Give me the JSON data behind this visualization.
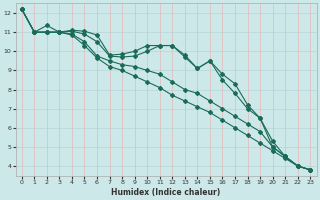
{
  "title": "",
  "xlabel": "Humidex (Indice chaleur)",
  "background_color": "#cce8e8",
  "grid_color_h": "#b8d4d4",
  "grid_color_v": "#e8b8b8",
  "line_color": "#1a6b5a",
  "xlim": [
    -0.5,
    23.5
  ],
  "ylim": [
    3.5,
    12.5
  ],
  "yticks": [
    4,
    5,
    6,
    7,
    8,
    9,
    10,
    11,
    12
  ],
  "xticks": [
    0,
    1,
    2,
    3,
    4,
    5,
    6,
    7,
    8,
    9,
    10,
    11,
    12,
    13,
    14,
    15,
    16,
    17,
    18,
    19,
    20,
    21,
    22,
    23
  ],
  "series": [
    {
      "x": [
        0,
        1,
        2,
        3,
        4,
        5,
        6,
        7,
        8,
        9,
        10,
        11,
        12,
        13,
        14,
        15,
        16,
        17,
        18,
        19,
        20,
        21,
        22,
        23
      ],
      "y": [
        12.2,
        11.0,
        11.35,
        11.0,
        11.1,
        11.05,
        10.85,
        9.8,
        9.85,
        10.0,
        10.3,
        10.3,
        10.3,
        9.7,
        9.1,
        9.5,
        8.8,
        8.3,
        7.2,
        6.5,
        5.3,
        4.5,
        4.0,
        3.8
      ]
    },
    {
      "x": [
        0,
        1,
        2,
        3,
        4,
        5,
        6,
        7,
        8,
        9,
        10,
        11,
        12,
        13,
        14,
        15,
        16,
        17,
        18,
        19,
        20,
        21,
        22,
        23
      ],
      "y": [
        12.2,
        11.0,
        11.0,
        11.0,
        11.05,
        10.9,
        10.5,
        9.75,
        9.7,
        9.75,
        10.0,
        10.3,
        10.3,
        9.8,
        9.1,
        9.5,
        8.5,
        7.8,
        7.0,
        6.5,
        5.0,
        4.5,
        4.0,
        3.8
      ]
    },
    {
      "x": [
        0,
        1,
        2,
        3,
        4,
        5,
        6,
        7,
        8,
        9,
        10,
        11,
        12,
        13,
        14,
        15,
        16,
        17,
        18,
        19,
        20,
        21,
        22,
        23
      ],
      "y": [
        12.2,
        11.0,
        11.0,
        11.0,
        10.9,
        10.5,
        9.75,
        9.5,
        9.3,
        9.2,
        9.0,
        8.8,
        8.4,
        8.0,
        7.8,
        7.4,
        7.0,
        6.6,
        6.2,
        5.8,
        5.0,
        4.5,
        4.0,
        3.8
      ]
    },
    {
      "x": [
        0,
        1,
        2,
        3,
        4,
        5,
        6,
        7,
        8,
        9,
        10,
        11,
        12,
        13,
        14,
        15,
        16,
        17,
        18,
        19,
        20,
        21,
        22,
        23
      ],
      "y": [
        12.2,
        11.0,
        11.0,
        11.0,
        10.85,
        10.3,
        9.65,
        9.2,
        9.0,
        8.7,
        8.4,
        8.1,
        7.7,
        7.4,
        7.1,
        6.8,
        6.4,
        6.0,
        5.6,
        5.2,
        4.8,
        4.4,
        4.0,
        3.8
      ]
    }
  ]
}
